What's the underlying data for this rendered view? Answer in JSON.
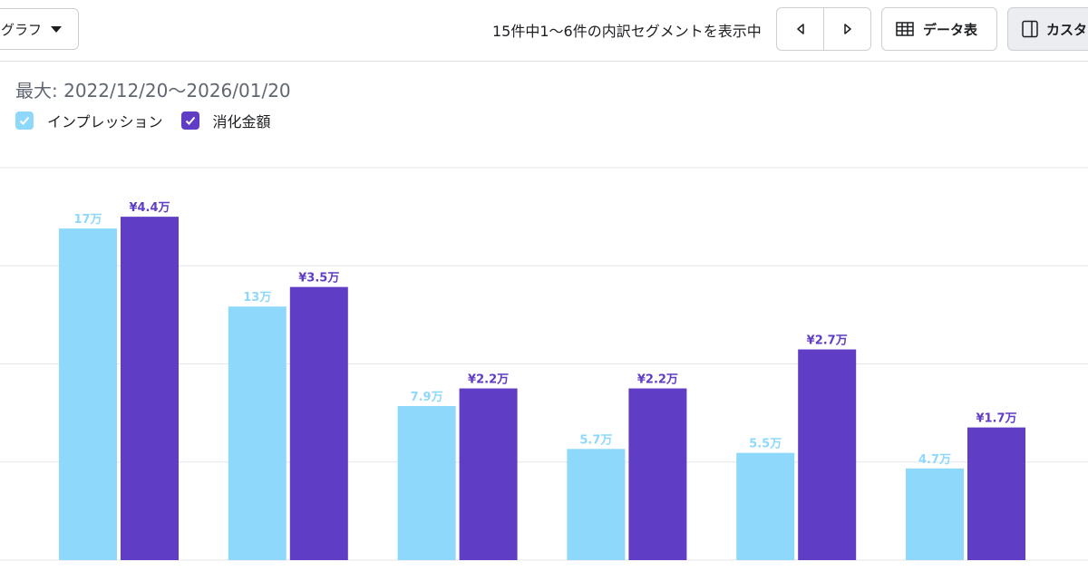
{
  "toolbar": {
    "chart_type_label": "グラフ",
    "segment_count_text": "15件中1〜6件の内訳セグメントを表示中",
    "data_table_label": "データ表",
    "customize_label": "カスタ"
  },
  "date_range": "最大: 2022/12/20〜2026/01/20",
  "colors": {
    "impressions": "#8ed8fb",
    "spend": "#5f3dc4",
    "grid": "#e4e6eb"
  },
  "icons": {
    "chart_type": "caret-down-icon",
    "prev": "triangle-left-icon",
    "next": "triangle-right-icon",
    "data_table": "table-icon",
    "customize": "panel-icon",
    "legend_check": "checkmark-icon"
  },
  "chart_data": {
    "type": "bar",
    "title": "",
    "xlabel": "",
    "ylabel": "",
    "categories": [
      "",
      "",
      "",
      "",
      "",
      ""
    ],
    "series": [
      {
        "name": "インプレッション",
        "color": "#8ed8fb",
        "values": [
          170000,
          130000,
          79000,
          57000,
          55000,
          47000
        ],
        "labels": [
          "17万",
          "13万",
          "7.9万",
          "5.7万",
          "5.5万",
          "4.7万"
        ]
      },
      {
        "name": "消化金額",
        "color": "#5f3dc4",
        "values": [
          44000,
          35000,
          22000,
          22000,
          27000,
          17000
        ],
        "labels": [
          "¥4.4万",
          "¥3.5万",
          "¥2.2万",
          "¥2.2万",
          "¥2.7万",
          "¥1.7万"
        ]
      }
    ],
    "grid": true,
    "legend_position": "top-left"
  }
}
